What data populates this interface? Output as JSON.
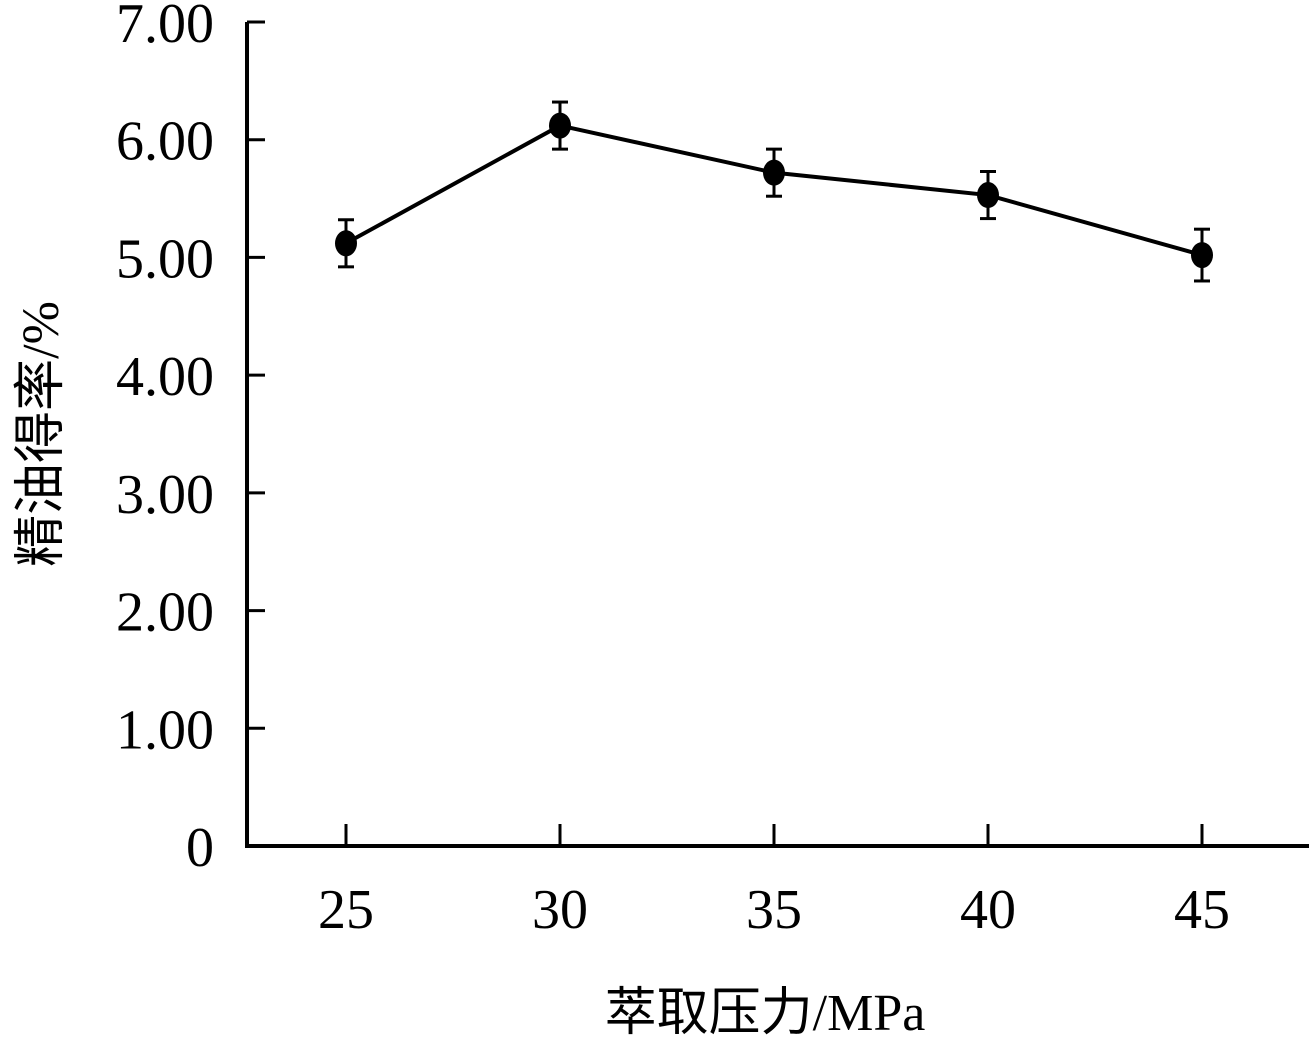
{
  "chart_data": {
    "type": "line",
    "title": "",
    "xlabel": "萃取压力/MPa",
    "ylabel": "精油得率/%",
    "x": [
      25,
      30,
      35,
      40,
      45
    ],
    "x_tick_labels": [
      "25",
      "30",
      "35",
      "40",
      "45"
    ],
    "y_tick_labels": [
      "0",
      "1.00",
      "2.00",
      "3.00",
      "4.00",
      "5.00",
      "6.00",
      "7.00"
    ],
    "y_ticks": [
      0,
      1,
      2,
      3,
      4,
      5,
      6,
      7
    ],
    "ylim": [
      0,
      7
    ],
    "series": [
      {
        "values": [
          5.12,
          6.12,
          5.72,
          5.53,
          5.02
        ],
        "error": [
          0.2,
          0.2,
          0.2,
          0.2,
          0.22
        ]
      }
    ],
    "grid": false,
    "legend": "none",
    "colors": {
      "line": "#000000",
      "marker": "#000000",
      "axis": "#000000"
    }
  }
}
